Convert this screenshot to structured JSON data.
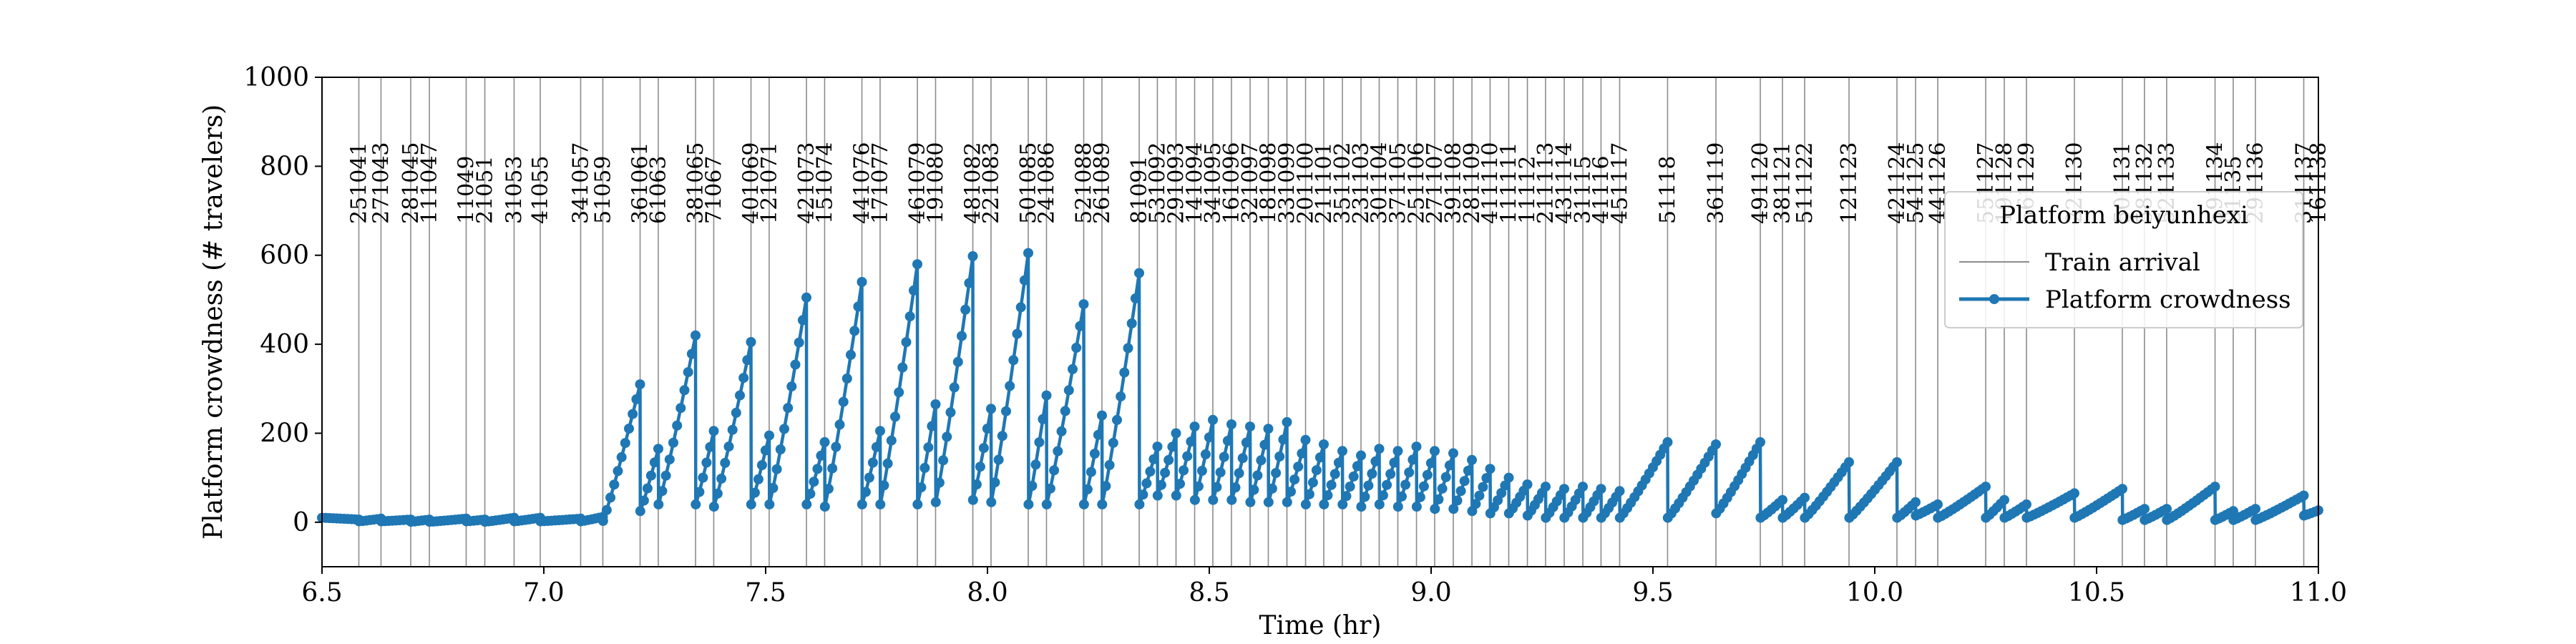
{
  "chart_data": {
    "type": "line",
    "xlabel": "Time (hr)",
    "ylabel": "Platform crowdness (# travelers)",
    "xlim": [
      6.5,
      11.0
    ],
    "ylim": [
      -100,
      1000
    ],
    "xticks": [
      "6.5",
      "7.0",
      "7.5",
      "8.0",
      "8.5",
      "9.0",
      "9.5",
      "10.0",
      "10.5",
      "11.0"
    ],
    "yticks": [
      "0",
      "200",
      "400",
      "600",
      "800",
      "1000"
    ],
    "legend": {
      "title": "Platform beiyunhexi",
      "placement": "right",
      "entries": [
        "Train arrival",
        "Platform crowdness"
      ]
    },
    "colors": {
      "series": "#1f77b4",
      "train_line": "#8c8c8c"
    },
    "train_arrivals": [
      {
        "t": 6.583,
        "label": "251041"
      },
      {
        "t": 6.633,
        "label": "271043"
      },
      {
        "t": 6.7,
        "label": "281045"
      },
      {
        "t": 6.742,
        "label": "111047"
      },
      {
        "t": 6.825,
        "label": "11049"
      },
      {
        "t": 6.867,
        "label": "21051"
      },
      {
        "t": 6.933,
        "label": "31053"
      },
      {
        "t": 6.992,
        "label": "41055"
      },
      {
        "t": 7.083,
        "label": "341057"
      },
      {
        "t": 7.133,
        "label": "51059"
      },
      {
        "t": 7.217,
        "label": "361061"
      },
      {
        "t": 7.258,
        "label": "61063"
      },
      {
        "t": 7.342,
        "label": "381065"
      },
      {
        "t": 7.383,
        "label": "71067"
      },
      {
        "t": 7.467,
        "label": "401069"
      },
      {
        "t": 7.508,
        "label": "121071"
      },
      {
        "t": 7.592,
        "label": "421073"
      },
      {
        "t": 7.633,
        "label": "151074"
      },
      {
        "t": 7.717,
        "label": "441076"
      },
      {
        "t": 7.758,
        "label": "171077"
      },
      {
        "t": 7.842,
        "label": "461079"
      },
      {
        "t": 7.883,
        "label": "191080"
      },
      {
        "t": 7.967,
        "label": "481082"
      },
      {
        "t": 8.008,
        "label": "221083"
      },
      {
        "t": 8.092,
        "label": "501085"
      },
      {
        "t": 8.133,
        "label": "241086"
      },
      {
        "t": 8.217,
        "label": "521088"
      },
      {
        "t": 8.258,
        "label": "261089"
      },
      {
        "t": 8.342,
        "label": "81091"
      },
      {
        "t": 8.383,
        "label": "531092"
      },
      {
        "t": 8.425,
        "label": "291093"
      },
      {
        "t": 8.467,
        "label": "141094"
      },
      {
        "t": 8.508,
        "label": "341095"
      },
      {
        "t": 8.55,
        "label": "161096"
      },
      {
        "t": 8.592,
        "label": "321097"
      },
      {
        "t": 8.633,
        "label": "181098"
      },
      {
        "t": 8.675,
        "label": "331099"
      },
      {
        "t": 8.717,
        "label": "201100"
      },
      {
        "t": 8.758,
        "label": "211101"
      },
      {
        "t": 8.8,
        "label": "351102"
      },
      {
        "t": 8.842,
        "label": "231103"
      },
      {
        "t": 8.883,
        "label": "301104"
      },
      {
        "t": 8.925,
        "label": "371105"
      },
      {
        "t": 8.967,
        "label": "251106"
      },
      {
        "t": 9.008,
        "label": "271107"
      },
      {
        "t": 9.05,
        "label": "391108"
      },
      {
        "t": 9.092,
        "label": "281109"
      },
      {
        "t": 9.133,
        "label": "411110"
      },
      {
        "t": 9.175,
        "label": "111111"
      },
      {
        "t": 9.217,
        "label": "11112"
      },
      {
        "t": 9.258,
        "label": "211113"
      },
      {
        "t": 9.3,
        "label": "431114"
      },
      {
        "t": 9.342,
        "label": "31115"
      },
      {
        "t": 9.383,
        "label": "41116"
      },
      {
        "t": 9.425,
        "label": "451117"
      },
      {
        "t": 9.533,
        "label": "51118"
      },
      {
        "t": 9.642,
        "label": "361119"
      },
      {
        "t": 9.742,
        "label": "491120"
      },
      {
        "t": 9.792,
        "label": "381121"
      },
      {
        "t": 9.842,
        "label": "511122"
      },
      {
        "t": 9.942,
        "label": "121123"
      },
      {
        "t": 10.05,
        "label": "421124"
      },
      {
        "t": 10.092,
        "label": "541125"
      },
      {
        "t": 10.142,
        "label": "441126"
      },
      {
        "t": 10.25,
        "label": "551127"
      },
      {
        "t": 10.292,
        "label": "191128"
      },
      {
        "t": 10.342,
        "label": "561129"
      },
      {
        "t": 10.45,
        "label": "221130"
      },
      {
        "t": 10.558,
        "label": "501131"
      },
      {
        "t": 10.608,
        "label": "581132"
      },
      {
        "t": 10.658,
        "label": "521133"
      },
      {
        "t": 10.767,
        "label": "591134"
      },
      {
        "t": 10.808,
        "label": "81135"
      },
      {
        "t": 10.858,
        "label": "291136"
      },
      {
        "t": 10.967,
        "label": "311137"
      },
      {
        "t": 11.008,
        "label": "161138"
      }
    ],
    "series": [
      {
        "name": "Platform crowdness",
        "step_hr": 0.00833,
        "start_t": 6.5,
        "start_y": 10,
        "buildups": [
          {
            "t": 6.583,
            "peak": 6,
            "after": 2,
            "mid_t": 6.55,
            "mid_y": 8
          },
          {
            "t": 6.633,
            "peak": 8,
            "after": 2
          },
          {
            "t": 6.7,
            "peak": 6,
            "after": 1
          },
          {
            "t": 6.742,
            "peak": 6,
            "after": 1
          },
          {
            "t": 6.825,
            "peak": 8,
            "after": 2
          },
          {
            "t": 6.867,
            "peak": 6,
            "after": 1
          },
          {
            "t": 6.933,
            "peak": 10,
            "after": 2
          },
          {
            "t": 6.992,
            "peak": 10,
            "after": 2
          },
          {
            "t": 7.083,
            "peak": 8,
            "after": 2
          },
          {
            "t": 7.133,
            "peak": 12,
            "after": 3
          },
          {
            "t": 7.217,
            "peak": 310,
            "after": 25
          },
          {
            "t": 7.258,
            "peak": 165,
            "after": 40
          },
          {
            "t": 7.342,
            "peak": 420,
            "after": 40
          },
          {
            "t": 7.383,
            "peak": 205,
            "after": 35
          },
          {
            "t": 7.467,
            "peak": 405,
            "after": 40
          },
          {
            "t": 7.508,
            "peak": 195,
            "after": 40
          },
          {
            "t": 7.592,
            "peak": 505,
            "after": 40
          },
          {
            "t": 7.633,
            "peak": 180,
            "after": 35
          },
          {
            "t": 7.717,
            "peak": 540,
            "after": 40
          },
          {
            "t": 7.758,
            "peak": 205,
            "after": 40
          },
          {
            "t": 7.842,
            "peak": 580,
            "after": 40
          },
          {
            "t": 7.883,
            "peak": 265,
            "after": 45
          },
          {
            "t": 7.967,
            "peak": 598,
            "after": 50
          },
          {
            "t": 8.008,
            "peak": 255,
            "after": 45
          },
          {
            "t": 8.092,
            "peak": 605,
            "after": 40
          },
          {
            "t": 8.133,
            "peak": 285,
            "after": 40
          },
          {
            "t": 8.217,
            "peak": 490,
            "after": 40
          },
          {
            "t": 8.258,
            "peak": 240,
            "after": 40
          },
          {
            "t": 8.342,
            "peak": 560,
            "after": 40
          },
          {
            "t": 8.383,
            "peak": 170,
            "after": 60
          },
          {
            "t": 8.425,
            "peak": 200,
            "after": 60
          },
          {
            "t": 8.467,
            "peak": 215,
            "after": 50
          },
          {
            "t": 8.508,
            "peak": 230,
            "after": 50
          },
          {
            "t": 8.55,
            "peak": 220,
            "after": 50
          },
          {
            "t": 8.592,
            "peak": 215,
            "after": 45
          },
          {
            "t": 8.633,
            "peak": 210,
            "after": 45
          },
          {
            "t": 8.675,
            "peak": 225,
            "after": 45
          },
          {
            "t": 8.717,
            "peak": 185,
            "after": 40
          },
          {
            "t": 8.758,
            "peak": 175,
            "after": 40
          },
          {
            "t": 8.8,
            "peak": 160,
            "after": 40
          },
          {
            "t": 8.842,
            "peak": 150,
            "after": 35
          },
          {
            "t": 8.883,
            "peak": 165,
            "after": 40
          },
          {
            "t": 8.925,
            "peak": 160,
            "after": 35
          },
          {
            "t": 8.967,
            "peak": 170,
            "after": 35
          },
          {
            "t": 9.008,
            "peak": 160,
            "after": 30
          },
          {
            "t": 9.05,
            "peak": 155,
            "after": 30
          },
          {
            "t": 9.092,
            "peak": 140,
            "after": 25
          },
          {
            "t": 9.133,
            "peak": 120,
            "after": 20
          },
          {
            "t": 9.175,
            "peak": 100,
            "after": 20
          },
          {
            "t": 9.217,
            "peak": 85,
            "after": 15
          },
          {
            "t": 9.258,
            "peak": 80,
            "after": 10
          },
          {
            "t": 9.3,
            "peak": 75,
            "after": 10
          },
          {
            "t": 9.342,
            "peak": 80,
            "after": 10
          },
          {
            "t": 9.383,
            "peak": 75,
            "after": 10
          },
          {
            "t": 9.425,
            "peak": 70,
            "after": 10
          },
          {
            "t": 9.533,
            "peak": 180,
            "after": 10
          },
          {
            "t": 9.642,
            "peak": 175,
            "after": 20
          },
          {
            "t": 9.742,
            "peak": 180,
            "after": 10
          },
          {
            "t": 9.792,
            "peak": 50,
            "after": 10
          },
          {
            "t": 9.842,
            "peak": 55,
            "after": 10
          },
          {
            "t": 9.942,
            "peak": 135,
            "after": 10
          },
          {
            "t": 10.05,
            "peak": 135,
            "after": 10
          },
          {
            "t": 10.092,
            "peak": 45,
            "after": 15
          },
          {
            "t": 10.142,
            "peak": 40,
            "after": 10
          },
          {
            "t": 10.25,
            "peak": 80,
            "after": 10
          },
          {
            "t": 10.292,
            "peak": 50,
            "after": 10
          },
          {
            "t": 10.342,
            "peak": 40,
            "after": 10
          },
          {
            "t": 10.45,
            "peak": 65,
            "after": 10
          },
          {
            "t": 10.558,
            "peak": 75,
            "after": 5
          },
          {
            "t": 10.608,
            "peak": 30,
            "after": 5
          },
          {
            "t": 10.658,
            "peak": 30,
            "after": 5
          },
          {
            "t": 10.767,
            "peak": 80,
            "after": 5
          },
          {
            "t": 10.808,
            "peak": 25,
            "after": 5
          },
          {
            "t": 10.858,
            "peak": 30,
            "after": 5
          },
          {
            "t": 10.967,
            "peak": 60,
            "after": 15
          },
          {
            "t": 11.008,
            "peak": 30,
            "after": 10
          }
        ]
      }
    ]
  }
}
